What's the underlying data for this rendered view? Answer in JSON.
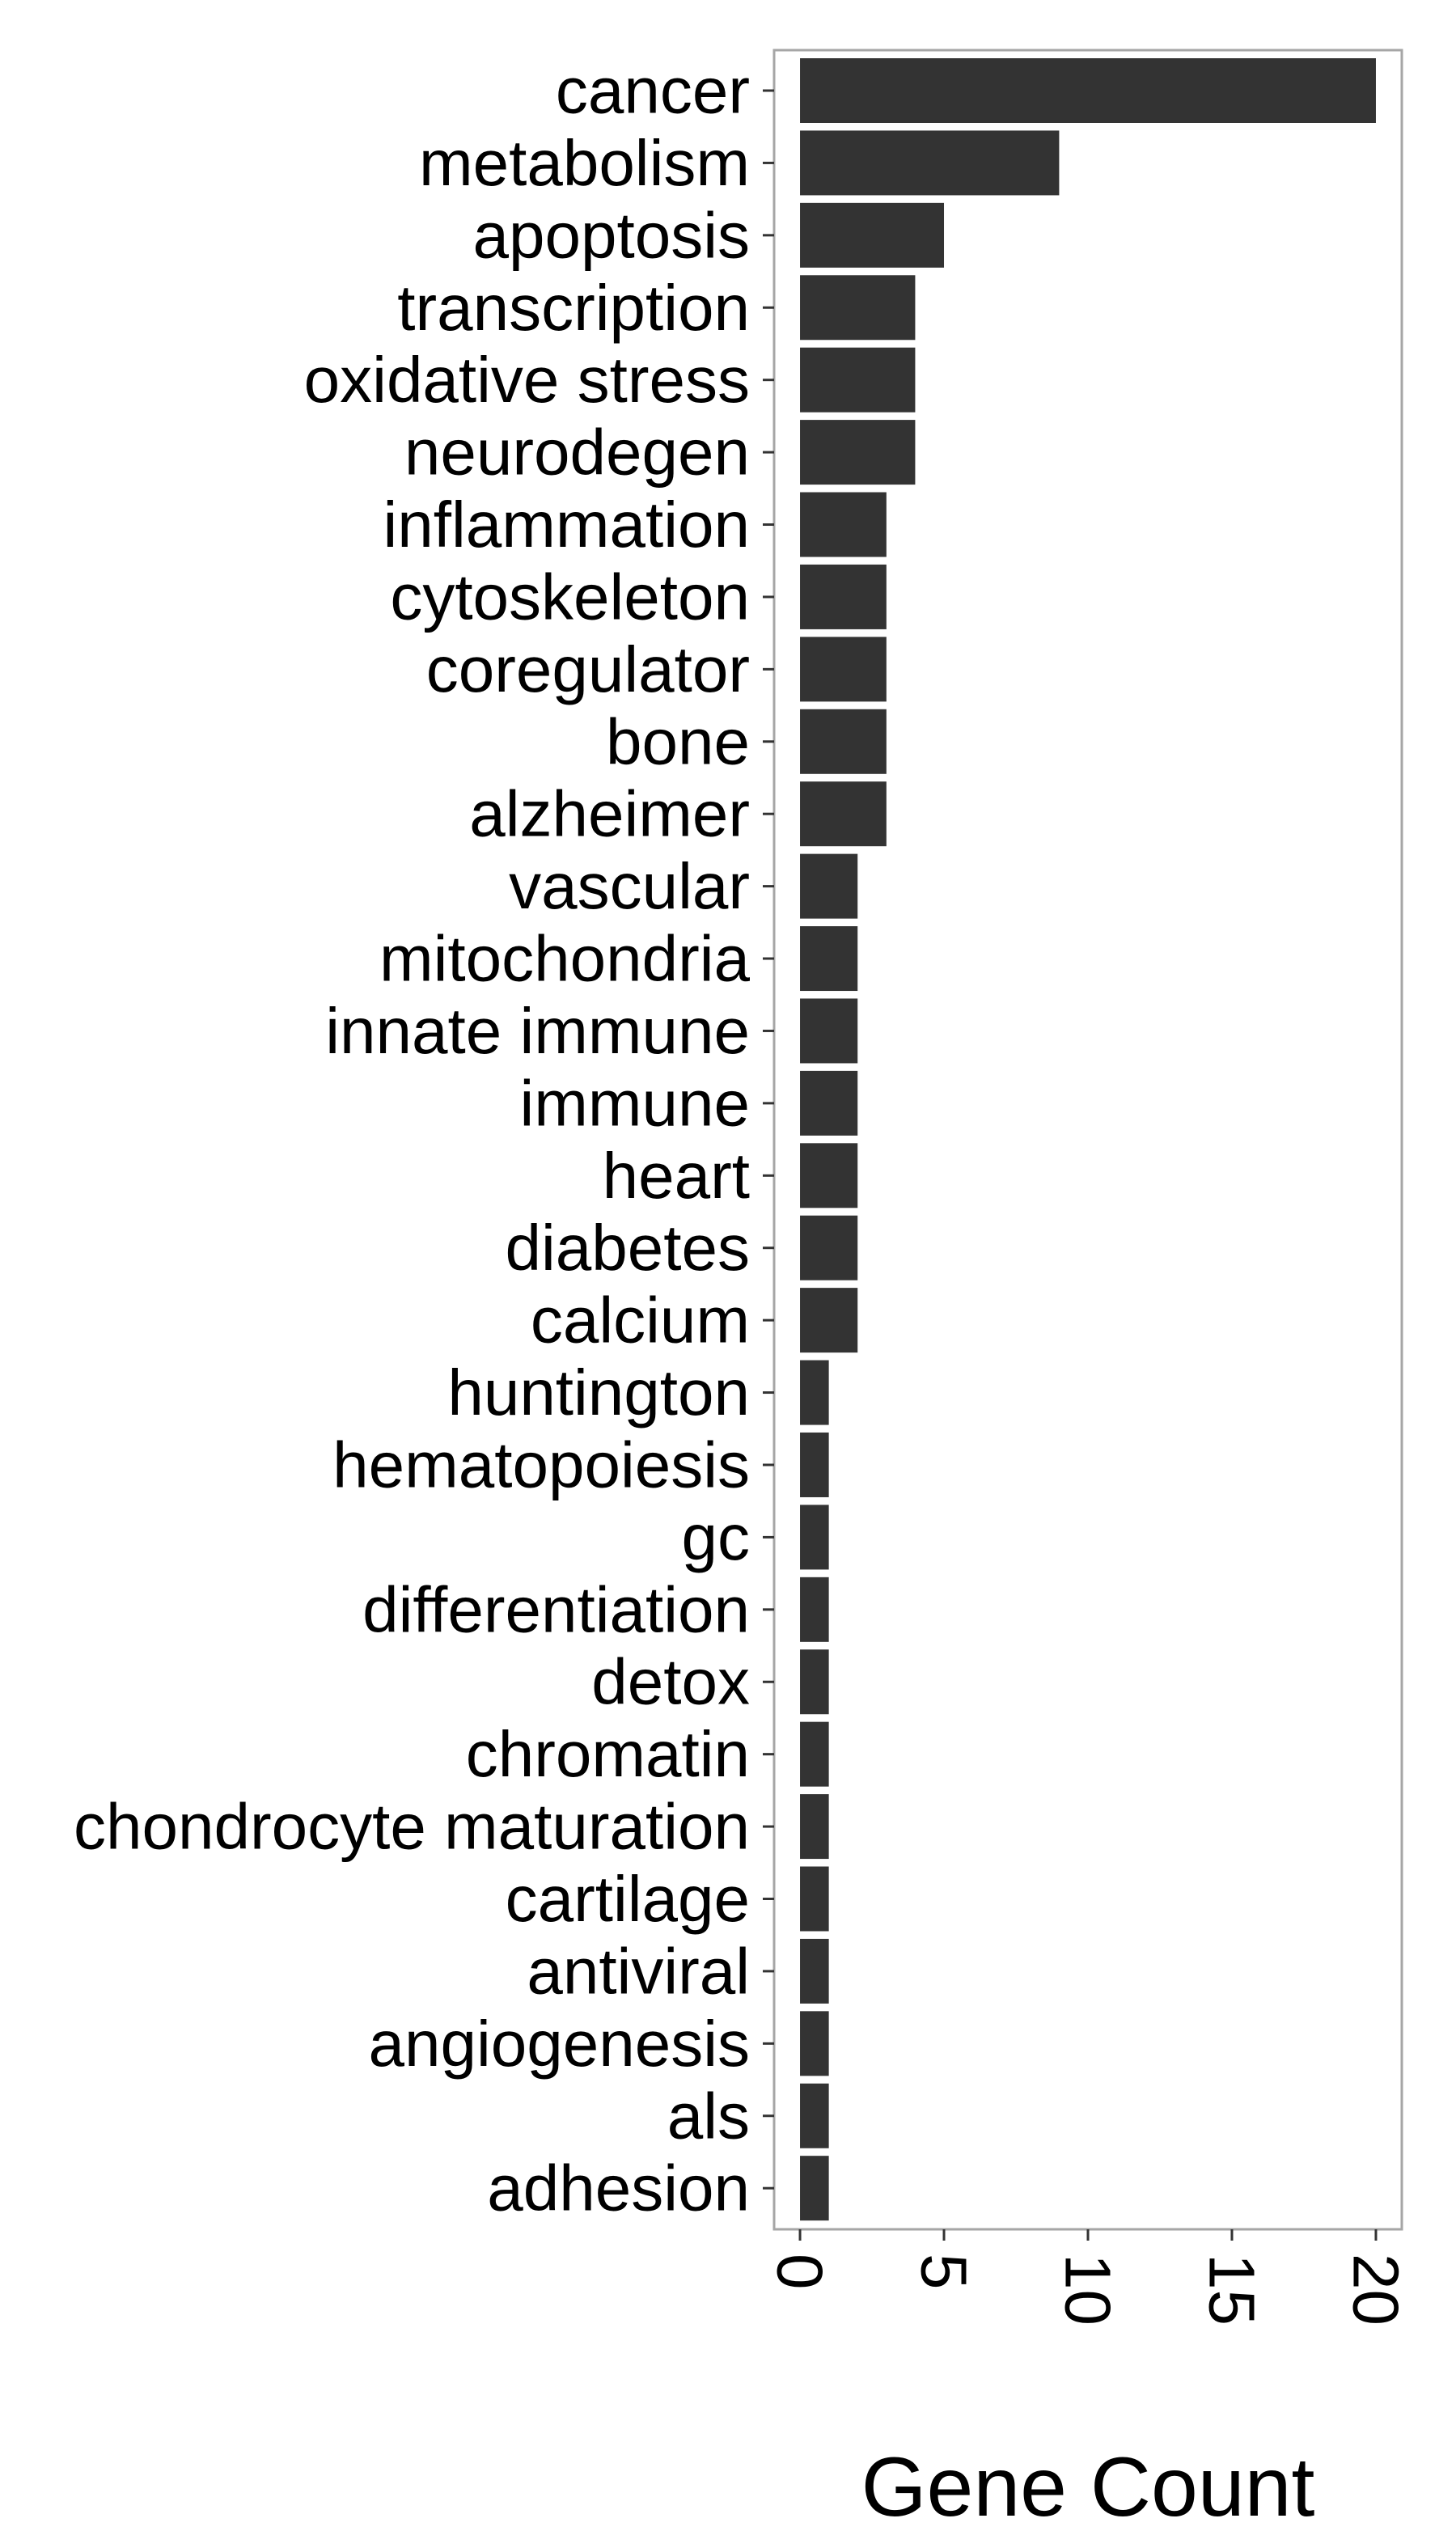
{
  "chart_data": {
    "type": "bar",
    "orientation": "horizontal",
    "categories": [
      "cancer",
      "metabolism",
      "apoptosis",
      "transcription",
      "oxidative stress",
      "neurodegen",
      "inflammation",
      "cytoskeleton",
      "coregulator",
      "bone",
      "alzheimer",
      "vascular",
      "mitochondria",
      "innate immune",
      "immune",
      "heart",
      "diabetes",
      "calcium",
      "huntington",
      "hematopoiesis",
      "gc",
      "differentiation",
      "detox",
      "chromatin",
      "chondrocyte maturation",
      "cartilage",
      "antiviral",
      "angiogenesis",
      "als",
      "adhesion"
    ],
    "values": [
      20,
      9,
      5,
      4,
      4,
      4,
      3,
      3,
      3,
      3,
      3,
      2,
      2,
      2,
      2,
      2,
      2,
      2,
      1,
      1,
      1,
      1,
      1,
      1,
      1,
      1,
      1,
      1,
      1,
      1
    ],
    "xlabel": "Gene Count",
    "ylabel": "",
    "xlim": [
      -0.9,
      20.9
    ],
    "x_ticks": [
      0,
      5,
      10,
      15,
      20
    ],
    "x_tick_labels": [
      "0",
      "5",
      "10",
      "15",
      "20"
    ],
    "x_tick_label_rotation": "90° clockwise",
    "grid": false,
    "bar_color": "#333333",
    "panel_border_color": "#a6a6a6",
    "background_color": "#ffffff"
  }
}
